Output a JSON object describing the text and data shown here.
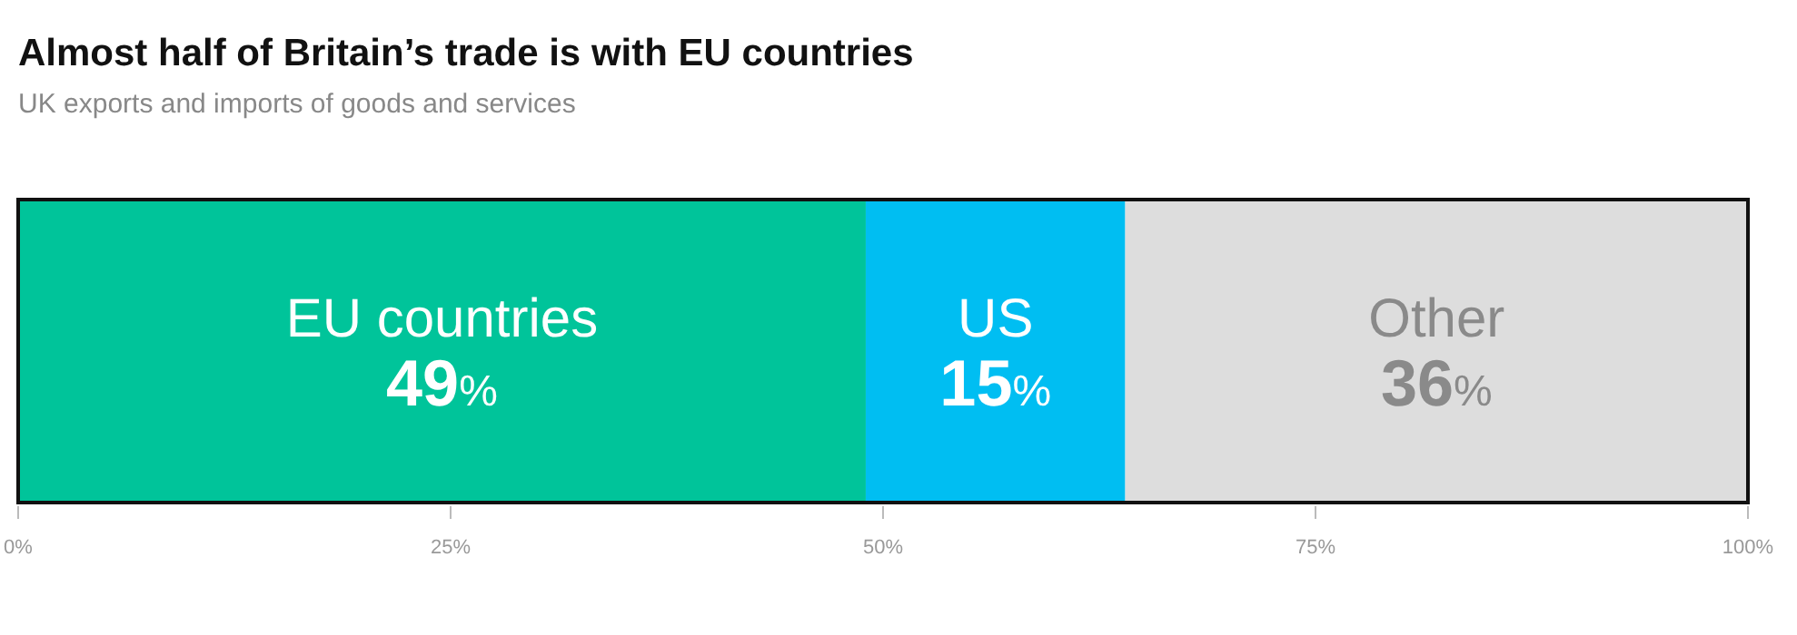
{
  "chart_data": {
    "type": "bar",
    "title": "Almost half of Britain’s trade is with EU countries",
    "subtitle": "UK exports and imports of goods and services",
    "orientation": "horizontal",
    "stacked": true,
    "categories": [
      null
    ],
    "series": [
      {
        "name": "EU countries",
        "color": "#00c49a",
        "values": [
          49
        ],
        "value_labels": [
          "49%"
        ]
      },
      {
        "name": "US",
        "color": "#00bef2",
        "values": [
          15
        ],
        "value_labels": [
          "15%"
        ]
      },
      {
        "name": "Other",
        "color": "#dddddd",
        "values": [
          36
        ],
        "value_labels": [
          "36%"
        ]
      }
    ],
    "xlim": [
      0,
      100
    ],
    "xticks": [
      {
        "value": 0,
        "label": "0%"
      },
      {
        "value": 25,
        "label": "25%"
      },
      {
        "value": 50,
        "label": "50%"
      },
      {
        "value": 75,
        "label": "75%"
      },
      {
        "value": 100,
        "label": "100%"
      }
    ]
  }
}
